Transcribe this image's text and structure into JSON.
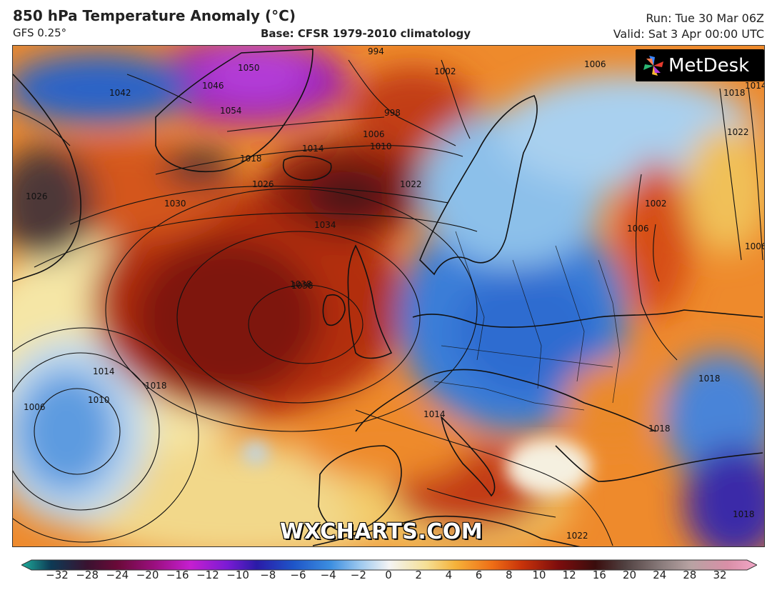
{
  "header": {
    "title": "850 hPa Temperature Anomaly (°C)",
    "model": "GFS 0.25°",
    "base": "Base: CFSR 1979-2010 climatology",
    "run": "Run: Tue 30 Mar 06Z",
    "valid": "Valid: Sat 3 Apr 00:00 UTC"
  },
  "logo": {
    "text": "MetDesk",
    "icon": "pinwheel-icon"
  },
  "watermark": "WXCHARTS.COM",
  "isobar_labels": [
    "1042",
    "1050",
    "1046",
    "1054",
    "1038",
    "994",
    "998",
    "1002",
    "1006",
    "1010",
    "1014",
    "1018",
    "1022",
    "1026",
    "1030",
    "1034",
    "1038",
    "1014",
    "1010",
    "1006",
    "1018",
    "1014",
    "1018",
    "1022",
    "1006",
    "1002",
    "1006",
    "1018",
    "1018",
    "1018",
    "1026",
    "1022",
    "1014",
    "1006"
  ],
  "colorbar": {
    "ticks": [
      "−32",
      "−28",
      "−24",
      "−20",
      "−16",
      "−12",
      "−10",
      "−8",
      "−6",
      "−4",
      "−2",
      "0",
      "2",
      "4",
      "6",
      "8",
      "10",
      "12",
      "16",
      "20",
      "24",
      "28",
      "32"
    ],
    "colors": [
      "#1fae9c",
      "#0d3a55",
      "#3a1230",
      "#6a0a38",
      "#9a0f7e",
      "#c51fd0",
      "#7a1bd4",
      "#2a1ba8",
      "#1e55c8",
      "#3c8ee0",
      "#9cc8ef",
      "#f4f4f4",
      "#f5e096",
      "#f5b23a",
      "#ef6e16",
      "#c8330a",
      "#7d0d0d",
      "#3a0d0d",
      "#504040",
      "#8a7c7c",
      "#b8a3a3",
      "#d98fa7",
      "#f2a7c7"
    ]
  },
  "colors": {
    "warm": "#d0461a",
    "cold": "#2f72d2",
    "coast": "#111111"
  }
}
